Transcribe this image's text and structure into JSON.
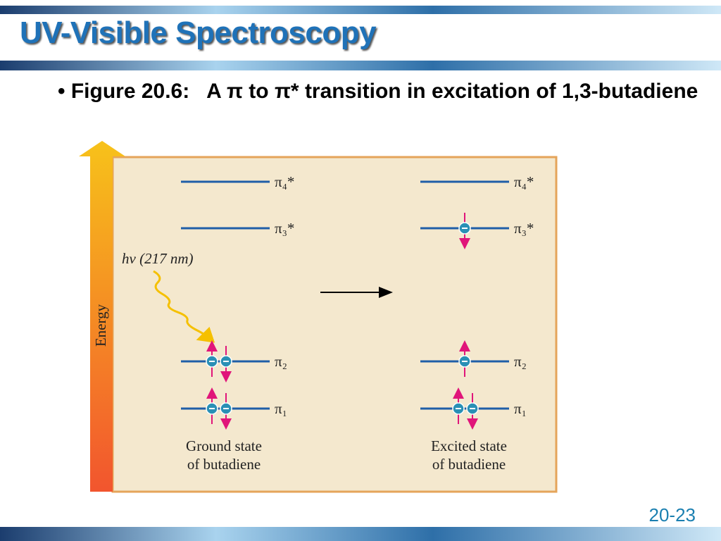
{
  "title": "UV-Visible Spectroscopy",
  "bullet": "Figure 20.6:   A π to π* transition in excitation of 1,3-butadiene",
  "figure": {
    "axis_label": "Energy",
    "photon_label": "hν (217 nm)",
    "orbitals": [
      "π₄*",
      "π₃*",
      "π₂",
      "π₁"
    ],
    "ground_caption": [
      "Ground state",
      "of butadiene"
    ],
    "excited_caption": [
      "Excited state",
      "of butadiene"
    ]
  },
  "page_number": "20-23"
}
